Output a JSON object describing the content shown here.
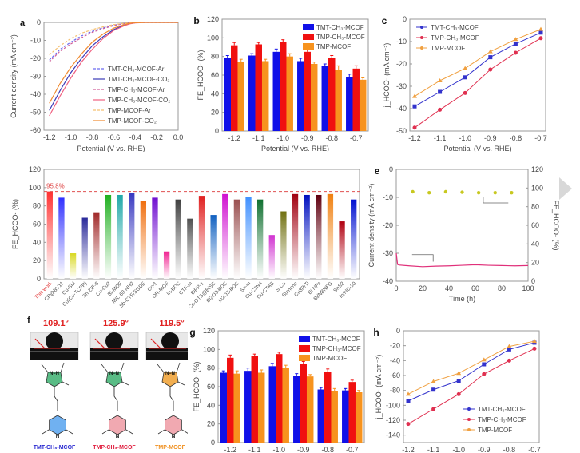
{
  "chart_data": [
    {
      "id": "a",
      "panel_label": "a",
      "type": "line",
      "title": "",
      "xlabel": "Potential (V vs. RHE)",
      "ylabel": "Current density (mA cm⁻²)",
      "xlim": [
        -1.25,
        0.0
      ],
      "ylim": [
        -60,
        0
      ],
      "xticks": [
        "-1.2",
        "-1.0",
        "-0.8",
        "-0.6",
        "-0.4",
        "-0.2",
        "0.0"
      ],
      "yticks": [
        "0",
        "-10",
        "-20",
        "-30",
        "-40",
        "-50",
        "-60"
      ],
      "xtick_values": [
        -1.2,
        -1.0,
        -0.8,
        -0.6,
        -0.4,
        -0.2,
        0.0
      ],
      "ytick_values": [
        0,
        -10,
        -20,
        -30,
        -40,
        -50,
        -60
      ],
      "legend_position": "center-right",
      "x": [
        -1.2,
        -1.1,
        -1.0,
        -0.9,
        -0.8,
        -0.7,
        -0.6,
        -0.5,
        -0.45,
        -0.4,
        -0.3,
        -0.2,
        -0.1,
        0.0
      ],
      "series": [
        {
          "name": "TMT-CH₃-MCOF-Ar",
          "color": "#6a6af0",
          "dash": true,
          "values": [
            -21,
            -15,
            -11,
            -7.5,
            -5,
            -3,
            -1.5,
            -0.6,
            -0.3,
            -0.1,
            0,
            0,
            0,
            0
          ]
        },
        {
          "name": "TMT-CH₃-MCOF-CO₂",
          "color": "#3a3ab8",
          "dash": false,
          "values": [
            -49,
            -38,
            -28,
            -20,
            -13,
            -8,
            -4,
            -1.5,
            -0.7,
            -0.2,
            0,
            0,
            0,
            0
          ]
        },
        {
          "name": "TMP-CH₃-MCOF-Ar",
          "color": "#d0609a",
          "dash": true,
          "values": [
            -22,
            -16,
            -12,
            -8.5,
            -5.5,
            -3.5,
            -1.8,
            -0.7,
            -0.3,
            -0.1,
            0,
            0,
            0,
            0
          ]
        },
        {
          "name": "TMP-CH₃-MCOF-CO₂",
          "color": "#f06080",
          "dash": false,
          "values": [
            -52,
            -41,
            -31,
            -22,
            -15,
            -9,
            -4.5,
            -1.8,
            -0.8,
            -0.3,
            0,
            0,
            0,
            0
          ]
        },
        {
          "name": "TMP-MCOF-Ar",
          "color": "#f5c070",
          "dash": true,
          "values": [
            -18,
            -13,
            -9,
            -6,
            -4,
            -2.5,
            -1.2,
            -0.5,
            -0.2,
            -0.1,
            0,
            0,
            0,
            0
          ]
        },
        {
          "name": "TMP-MCOF-CO₂",
          "color": "#f08a30",
          "dash": false,
          "values": [
            -45,
            -34,
            -25,
            -17.5,
            -11,
            -6.5,
            -3.2,
            -1.2,
            -0.5,
            -0.2,
            0,
            0,
            0,
            0
          ]
        }
      ]
    },
    {
      "id": "b",
      "panel_label": "b",
      "type": "bar",
      "title": "",
      "xlabel": "Potential (V vs. RHE)",
      "ylabel": "FE_HCOO- (%)",
      "ylim": [
        0,
        120
      ],
      "yticks": [
        "0",
        "20",
        "40",
        "60",
        "80",
        "100",
        "120"
      ],
      "ytick_values": [
        0,
        20,
        40,
        60,
        80,
        100,
        120
      ],
      "categories": [
        "-1.2",
        "-1.1",
        "-1.0",
        "-0.9",
        "-0.8",
        "-0.7"
      ],
      "legend_position": "top-right",
      "series": [
        {
          "name": "TMT-CH₃-MCOF",
          "color": "#1010e8",
          "values": [
            78,
            81,
            85,
            75,
            70,
            58
          ],
          "errors": [
            3,
            2,
            3,
            3,
            2,
            3
          ]
        },
        {
          "name": "TMP-CH₃-MCOF",
          "color": "#f01010",
          "values": [
            92,
            93,
            96,
            85,
            78,
            67
          ],
          "errors": [
            3,
            2,
            2,
            3,
            3,
            3
          ]
        },
        {
          "name": "TMP-MCOF",
          "color": "#f7931e",
          "values": [
            74,
            75,
            80,
            72,
            66,
            55
          ],
          "errors": [
            3,
            2,
            3,
            2,
            4,
            2
          ]
        }
      ]
    },
    {
      "id": "c",
      "panel_label": "c",
      "type": "line",
      "title": "",
      "xlabel": "Potential (V vs. RHE)",
      "ylabel": "j_HCOO- (mA cm⁻²)",
      "xlim": [
        -1.2,
        -0.7
      ],
      "ylim": [
        -50,
        0
      ],
      "xticks": [
        "-1.2",
        "-1.1",
        "-1.0",
        "-0.9",
        "-0.8",
        "-0.7"
      ],
      "yticks": [
        "0",
        "-10",
        "-20",
        "-30",
        "-40",
        "-50"
      ],
      "xtick_values": [
        -1.2,
        -1.1,
        -1.0,
        -0.9,
        -0.8,
        -0.7
      ],
      "ytick_values": [
        0,
        -10,
        -20,
        -30,
        -40,
        -50
      ],
      "x": [
        -1.2,
        -1.1,
        -1.0,
        -0.9,
        -0.8,
        -0.7
      ],
      "legend_position": "top-left",
      "series": [
        {
          "name": "TMT-CH₃-MCOF",
          "color": "#3333cc",
          "marker": "square",
          "values": [
            -39,
            -32.5,
            -26,
            -17,
            -11,
            -6
          ]
        },
        {
          "name": "TMP-CH₃-MCOF",
          "color": "#e03050",
          "marker": "circle",
          "values": [
            -48.5,
            -40.5,
            -33,
            -22.5,
            -15,
            -8.5
          ]
        },
        {
          "name": "TMP-MCOF",
          "color": "#f0a040",
          "marker": "triangle",
          "values": [
            -34.5,
            -27.5,
            -22,
            -14.5,
            -9,
            -4.5
          ]
        }
      ]
    },
    {
      "id": "d",
      "panel_label": "d",
      "type": "bar",
      "title": "",
      "xlabel": "",
      "ylabel": "FE_HCOO- (%)",
      "ylim": [
        0,
        120
      ],
      "yticks": [
        "0",
        "20",
        "40",
        "60",
        "80",
        "100",
        "120"
      ],
      "ytick_values": [
        0,
        20,
        40,
        60,
        80,
        100,
        120
      ],
      "reference_line": {
        "value": 95.8,
        "label": "95.8%",
        "color": "#e05050"
      },
      "categories": [
        "This work",
        "CP@BV11",
        "Cu-SM",
        "Cu(Cu-TCPP)",
        "Sn-ZIF-8",
        "Cu-Cu2",
        "Bi-MOF",
        "MIL-68-NH2",
        "Sb-CTF/SGDE",
        "Co-1",
        "OR-MOF",
        "In-BDC",
        "CTF-In",
        "BiPP-1",
        "Co-OTS@BiSC",
        "Bi2O3-BDC",
        "In2O3-BDC",
        "Sn-In",
        "Cu-C3N4",
        "Cu-CTAB",
        "S-Cu",
        "Stanene",
        "Cu3P/Ti",
        "Bi NFs",
        "Bi/NBNFG",
        "SnS2",
        "In/NC-30"
      ],
      "values": [
        95.8,
        89,
        28,
        67,
        73,
        92,
        92,
        94,
        85,
        89,
        30,
        87,
        66,
        91,
        70,
        93,
        87,
        90,
        87,
        48,
        74,
        93,
        92,
        92,
        93,
        63,
        87
      ],
      "colors": [
        "#ff3030",
        "#3030ff",
        "#d8d820",
        "#2a2a9a",
        "#a02828",
        "#20b020",
        "#20a8a8",
        "#3838c0",
        "#f07010",
        "#7010d0",
        "#f02090",
        "#404040",
        "#505050",
        "#e02020",
        "#1060c0",
        "#d010d0",
        "#9a5050",
        "#4090ff",
        "#107030",
        "#d030d0",
        "#707010",
        "#a00010",
        "#0010c0",
        "#600010",
        "#f08010",
        "#b00010",
        "#0010d0"
      ]
    },
    {
      "id": "e",
      "panel_label": "e",
      "type": "line",
      "title": "",
      "xlabel": "Time (h)",
      "ylabel": "Current density (mA cm⁻²)",
      "y2label": "FE_HCOO- (%)",
      "xlim": [
        0,
        100
      ],
      "ylim": [
        -40,
        0
      ],
      "y2lim": [
        0,
        120
      ],
      "xticks": [
        "0",
        "20",
        "40",
        "60",
        "80",
        "100"
      ],
      "xtick_values": [
        0,
        20,
        40,
        60,
        80,
        100
      ],
      "yticks": [
        "0",
        "-10",
        "-20",
        "-30",
        "-40"
      ],
      "ytick_values": [
        0,
        -10,
        -20,
        -30,
        -40
      ],
      "y2ticks": [
        "0",
        "20",
        "40",
        "60",
        "80",
        "100",
        "120"
      ],
      "y2tick_values": [
        0,
        20,
        40,
        60,
        80,
        100,
        120
      ],
      "series": [
        {
          "name": "Current density",
          "color": "#e0307a",
          "axis": "left",
          "x": [
            0,
            1,
            2,
            10,
            20,
            30,
            40,
            50,
            60,
            70,
            80,
            90,
            100
          ],
          "values": [
            -30,
            -34,
            -34.2,
            -34.5,
            -34.8,
            -34.6,
            -34.5,
            -34.3,
            -34.1,
            -34.3,
            -34.4,
            -34.5,
            -34.4
          ]
        },
        {
          "name": "FE_HCOO-",
          "color": "#c8c820",
          "axis": "right",
          "marker": "dot",
          "x": [
            12.5,
            25,
            37.5,
            50,
            62.5,
            75,
            87.5
          ],
          "values": [
            96,
            95,
            96,
            95.5,
            95,
            95,
            95
          ]
        }
      ]
    },
    {
      "id": "g",
      "panel_label": "g",
      "type": "bar",
      "title": "",
      "xlabel": "Potential (V vs. RHE)",
      "ylabel": "FE_HCOO- (%)",
      "ylim": [
        0,
        120
      ],
      "yticks": [
        "0",
        "20",
        "40",
        "60",
        "80",
        "100",
        "120"
      ],
      "ytick_values": [
        0,
        20,
        40,
        60,
        80,
        100,
        120
      ],
      "categories": [
        "-1.2",
        "-1.1",
        "-1.0",
        "-0.9",
        "-0.8",
        "-0.7"
      ],
      "legend_position": "top-right",
      "series": [
        {
          "name": "TMT-CH₃-MCOF",
          "color": "#1010e8",
          "values": [
            75,
            77,
            82,
            72,
            57,
            56
          ],
          "errors": [
            2,
            3,
            3,
            2,
            2,
            2
          ]
        },
        {
          "name": "TMP-CH₃-MCOF",
          "color": "#f01010",
          "values": [
            91,
            93,
            95,
            84,
            76,
            65
          ],
          "errors": [
            3,
            2,
            2,
            3,
            3,
            2
          ]
        },
        {
          "name": "TMP-MCOF",
          "color": "#f7931e",
          "values": [
            74,
            75,
            80,
            71,
            55,
            54
          ],
          "errors": [
            3,
            3,
            3,
            2,
            3,
            2
          ]
        }
      ]
    },
    {
      "id": "h",
      "panel_label": "h",
      "type": "line",
      "title": "",
      "xlabel": "Potential (V vs. RHE)",
      "ylabel": "j_HCOO- (mA cm⁻²)",
      "xlim": [
        -1.2,
        -0.7
      ],
      "ylim": [
        -150,
        0
      ],
      "xticks": [
        "-1.2",
        "-1.1",
        "-1.0",
        "-0.9",
        "-0.8",
        "-0.7"
      ],
      "yticks": [
        "0",
        "-20",
        "-40",
        "-60",
        "-80",
        "-100",
        "-120",
        "-140"
      ],
      "xtick_values": [
        -1.2,
        -1.1,
        -1.0,
        -0.9,
        -0.8,
        -0.7
      ],
      "ytick_values": [
        0,
        -20,
        -40,
        -60,
        -80,
        -100,
        -120,
        -140
      ],
      "x": [
        -1.2,
        -1.1,
        -1.0,
        -0.9,
        -0.8,
        -0.7
      ],
      "legend_position": "bottom-right",
      "series": [
        {
          "name": "TMT-CH₃-MCOF",
          "color": "#3333cc",
          "marker": "square",
          "values": [
            -94,
            -79,
            -67,
            -45,
            -25,
            -16
          ]
        },
        {
          "name": "TMP-CH₃-MCOF",
          "color": "#e03050",
          "marker": "circle",
          "values": [
            -125,
            -105,
            -85,
            -58,
            -40,
            -24
          ]
        },
        {
          "name": "TMP-MCOF",
          "color": "#f0a040",
          "marker": "triangle",
          "values": [
            -85,
            -68,
            -57,
            -39,
            -21,
            -14
          ]
        }
      ]
    }
  ],
  "panel_f": {
    "label": "f",
    "contact_angles": [
      "109.1°",
      "125.9°",
      "119.5°"
    ],
    "molecules": [
      {
        "name": "TMT-CH₃-MCOF",
        "color": "#2a2ad0",
        "ring_color": "#60a8f0",
        "top_ring_color": "#3cb070"
      },
      {
        "name": "TMP-CH₃-MCOF",
        "color": "#e02040",
        "ring_color": "#f0a0a8",
        "top_ring_color": "#3cb070"
      },
      {
        "name": "TMP-MCOF",
        "color": "#f09020",
        "ring_color": "#f0a0a8",
        "top_ring_color": "#f0a030"
      }
    ],
    "angle_color": "#e02020"
  }
}
